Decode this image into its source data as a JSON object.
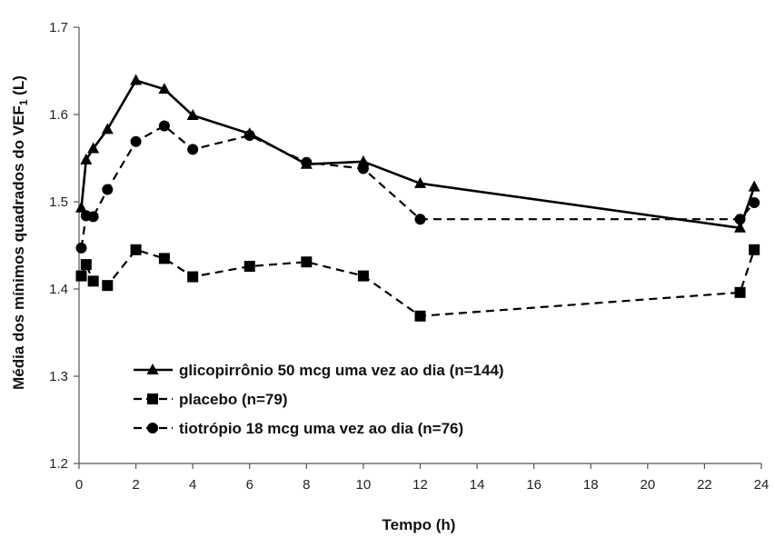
{
  "chart_data": {
    "type": "line",
    "title": "",
    "xlabel": "Tempo (h)",
    "ylabel": "Média dos mínimos quadrados do VEF",
    "ylabel_sub": "1",
    "ylabel_suffix": " (L)",
    "xlim": [
      0,
      24
    ],
    "ylim": [
      1.2,
      1.7
    ],
    "xticks": [
      0,
      2,
      4,
      6,
      8,
      10,
      12,
      14,
      16,
      18,
      20,
      22,
      24
    ],
    "yticks": [
      1.2,
      1.3,
      1.4,
      1.5,
      1.6,
      1.7
    ],
    "ytick_labels": [
      "1.2",
      "1.3",
      "1.4",
      "1.5",
      "1.6",
      "1.7"
    ],
    "grid": false,
    "legend_position": "lower-left",
    "series": [
      {
        "name": "glicopirrônio 50 mcg uma vez ao dia (n=144)",
        "marker": "triangle",
        "line": "solid",
        "color": "#000000",
        "x": [
          0.08,
          0.25,
          0.5,
          1,
          2,
          3,
          4,
          6,
          8,
          10,
          12,
          23.25,
          23.75
        ],
        "y": [
          1.493,
          1.548,
          1.561,
          1.583,
          1.639,
          1.629,
          1.599,
          1.578,
          1.543,
          1.546,
          1.521,
          1.47,
          1.517
        ]
      },
      {
        "name": "placebo (n=79)",
        "marker": "square",
        "line": "dashed",
        "color": "#000000",
        "x": [
          0.08,
          0.25,
          0.5,
          1,
          2,
          3,
          4,
          6,
          8,
          10,
          12,
          23.25,
          23.75
        ],
        "y": [
          1.415,
          1.428,
          1.409,
          1.404,
          1.445,
          1.435,
          1.414,
          1.426,
          1.431,
          1.415,
          1.369,
          1.396,
          1.445
        ]
      },
      {
        "name": "tiotrópio 18 mcg uma vez ao dia (n=76)",
        "marker": "circle",
        "line": "dashed",
        "color": "#000000",
        "x": [
          0.08,
          0.25,
          0.5,
          1,
          2,
          3,
          4,
          6,
          8,
          10,
          12,
          23.25,
          23.75
        ],
        "y": [
          1.447,
          1.484,
          1.483,
          1.514,
          1.569,
          1.587,
          1.56,
          1.576,
          1.545,
          1.538,
          1.48,
          1.48,
          1.499
        ]
      }
    ]
  }
}
